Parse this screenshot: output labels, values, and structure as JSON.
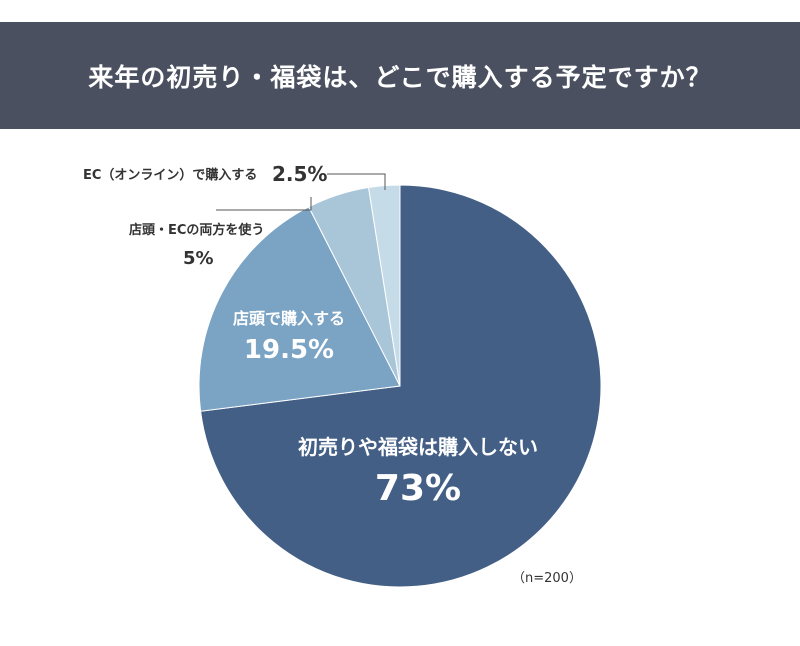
{
  "header": {
    "title": "来年の初売り・福袋は、どこで購入する予定ですか？"
  },
  "chart_data": {
    "type": "pie",
    "title": "来年の初売り・福袋は、どこで購入する予定ですか？",
    "slices": [
      {
        "label": "初売りや福袋は購入しない",
        "value": 73,
        "value_label": "73%",
        "color": "#445f86"
      },
      {
        "label": "店頭で購入する",
        "value": 19.5,
        "value_label": "19.5%",
        "color": "#7aa3c4"
      },
      {
        "label": "店頭・ECの両方を使う",
        "value": 5,
        "value_label": "5%",
        "color": "#a8c6d8"
      },
      {
        "label": "EC（オンライン）で購入する",
        "value": 2.5,
        "value_label": "2.5%",
        "color": "#c5dbe7"
      }
    ],
    "start": "12 o'clock, clockwise",
    "note": "（n=200）"
  }
}
